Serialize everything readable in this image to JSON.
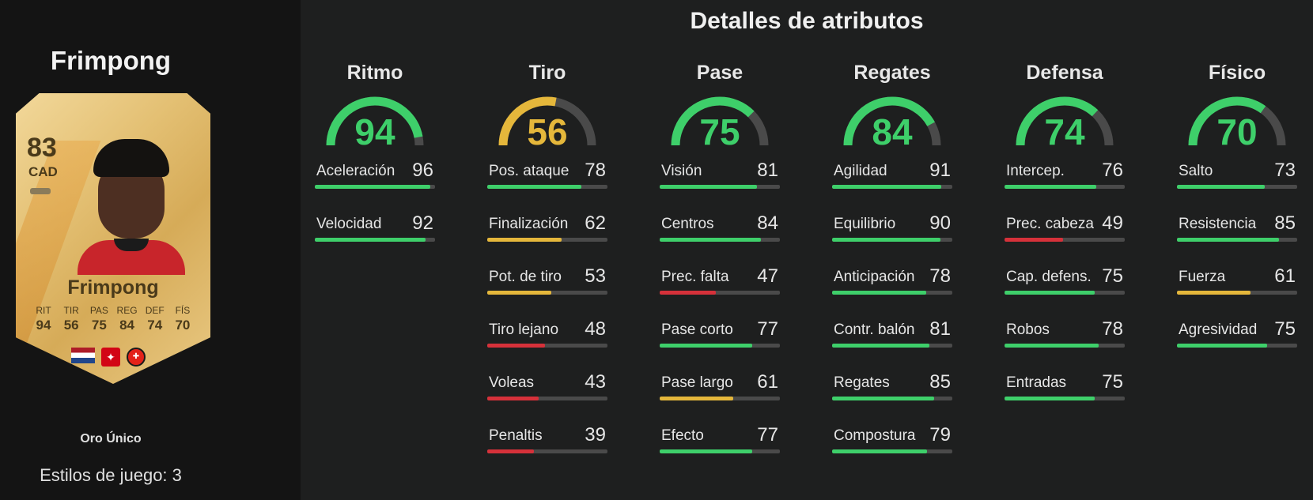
{
  "header": {
    "title": "Detalles de atributos"
  },
  "player": {
    "name": "Frimpong",
    "card_name": "Frimpong",
    "rating": "83",
    "position": "CAD",
    "card_type": "Oro Único",
    "playstyles": "Estilos de juego: 3",
    "nation_icon": "netherlands-flag-icon",
    "league_icon": "bundesliga-icon",
    "club_icon": "bayer-leverkusen-icon",
    "face_stats": [
      {
        "label": "RIT",
        "value": "94"
      },
      {
        "label": "TIR",
        "value": "56"
      },
      {
        "label": "PAS",
        "value": "75"
      },
      {
        "label": "REG",
        "value": "84"
      },
      {
        "label": "DEF",
        "value": "74"
      },
      {
        "label": "FÍS",
        "value": "70"
      }
    ]
  },
  "colors": {
    "high": "#3ecf6a",
    "mid": "#e5b73b",
    "low": "#d6313a",
    "track": "#4a4a4a"
  },
  "categories": [
    {
      "name": "Ritmo",
      "value": 94,
      "stats": [
        {
          "label": "Aceleración",
          "value": 96
        },
        {
          "label": "Velocidad",
          "value": 92
        }
      ]
    },
    {
      "name": "Tiro",
      "value": 56,
      "stats": [
        {
          "label": "Pos. ataque",
          "value": 78
        },
        {
          "label": "Finalización",
          "value": 62
        },
        {
          "label": "Pot. de tiro",
          "value": 53
        },
        {
          "label": "Tiro lejano",
          "value": 48
        },
        {
          "label": "Voleas",
          "value": 43
        },
        {
          "label": "Penaltis",
          "value": 39
        }
      ]
    },
    {
      "name": "Pase",
      "value": 75,
      "stats": [
        {
          "label": "Visión",
          "value": 81
        },
        {
          "label": "Centros",
          "value": 84
        },
        {
          "label": "Prec. falta",
          "value": 47
        },
        {
          "label": "Pase corto",
          "value": 77
        },
        {
          "label": "Pase largo",
          "value": 61
        },
        {
          "label": "Efecto",
          "value": 77
        }
      ]
    },
    {
      "name": "Regates",
      "value": 84,
      "stats": [
        {
          "label": "Agilidad",
          "value": 91
        },
        {
          "label": "Equilibrio",
          "value": 90
        },
        {
          "label": "Anticipación",
          "value": 78
        },
        {
          "label": "Contr. balón",
          "value": 81
        },
        {
          "label": "Regates",
          "value": 85
        },
        {
          "label": "Compostura",
          "value": 79
        }
      ]
    },
    {
      "name": "Defensa",
      "value": 74,
      "stats": [
        {
          "label": "Intercep.",
          "value": 76
        },
        {
          "label": "Prec. cabeza",
          "value": 49
        },
        {
          "label": "Cap. defens.",
          "value": 75
        },
        {
          "label": "Robos",
          "value": 78
        },
        {
          "label": "Entradas",
          "value": 75
        }
      ]
    },
    {
      "name": "Físico",
      "value": 70,
      "stats": [
        {
          "label": "Salto",
          "value": 73
        },
        {
          "label": "Resistencia",
          "value": 85
        },
        {
          "label": "Fuerza",
          "value": 61
        },
        {
          "label": "Agresividad",
          "value": 75
        }
      ]
    }
  ]
}
